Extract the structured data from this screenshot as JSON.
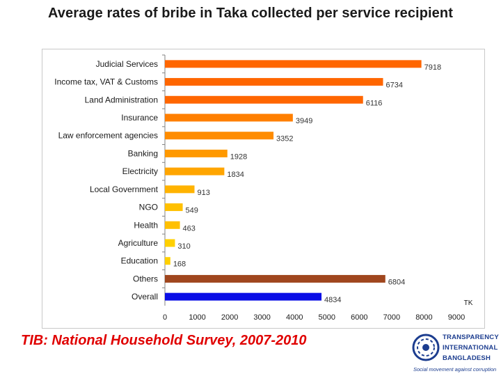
{
  "title": "Average rates of bribe in Taka collected per service recipient",
  "footer": "TIB: National Household Survey, 2007-2010",
  "logo": {
    "line1": "TRANSPARENCY",
    "line2": "INTERNATIONAL",
    "line3": "BANGLADESH",
    "tagline": "Social movement against corruption"
  },
  "chart_data": {
    "type": "bar",
    "orientation": "horizontal",
    "title": "",
    "xlabel": "TK",
    "ylabel": "",
    "xlim": [
      0,
      9000
    ],
    "xticks": [
      "0",
      "1000",
      "2000",
      "3000",
      "4000",
      "5000",
      "6000",
      "7000",
      "8000",
      "9000"
    ],
    "categories": [
      "Judicial Services",
      "Income tax, VAT & Customs",
      "Land Administration",
      "Insurance",
      "Law enforcement agencies",
      "Banking",
      "Electricity",
      "Local Government",
      "NGO",
      "Health",
      "Agriculture",
      "Education",
      "Others",
      "Overall"
    ],
    "values": [
      7918,
      6734,
      6116,
      3949,
      3352,
      1928,
      1834,
      913,
      549,
      463,
      310,
      168,
      6804,
      4834
    ],
    "value_labels": [
      "7918",
      "6734",
      "6116",
      "3949",
      "3352",
      "1928",
      "1834",
      "913",
      "549",
      "463",
      "310",
      "168",
      "6804",
      "4834"
    ],
    "colors": [
      "#ff6600",
      "#ff6600",
      "#ff6600",
      "#ff7f00",
      "#ff8c00",
      "#ff9900",
      "#ffa500",
      "#ffb300",
      "#ffc000",
      "#ffc000",
      "#ffd000",
      "#ffd000",
      "#a0461e",
      "#0a0ee6"
    ],
    "grid": false,
    "legend": "none"
  }
}
